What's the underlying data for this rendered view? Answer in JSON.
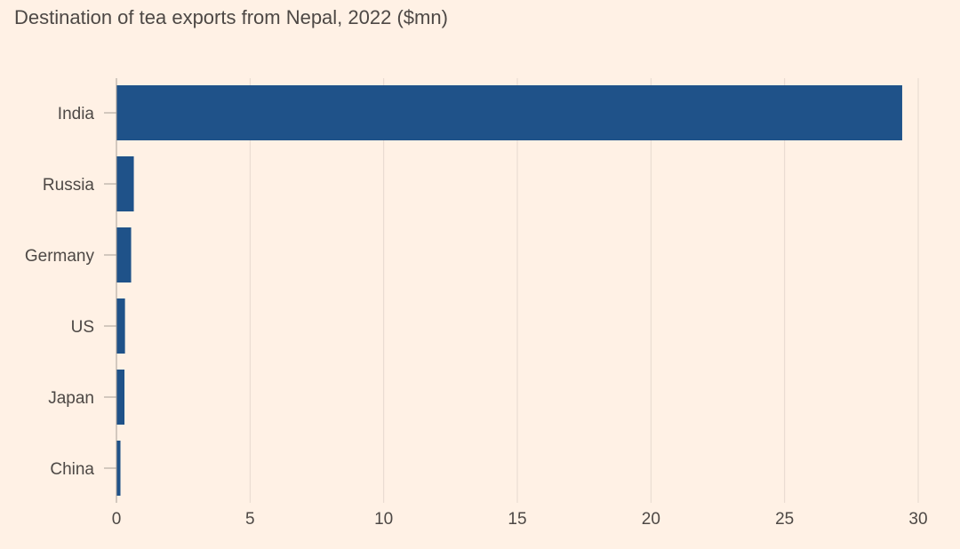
{
  "title": "Destination of tea exports from Nepal, 2022 ($mn)",
  "colors": {
    "background": "#fff1e5",
    "bar": "#1f5289",
    "grid": "#e6d9ce",
    "axis": "#a79f97",
    "text": "#4d4845"
  },
  "chart_data": {
    "type": "bar",
    "orientation": "horizontal",
    "title": "Destination of tea exports from Nepal, 2022 ($mn)",
    "categories": [
      "India",
      "Russia",
      "Germany",
      "US",
      "Japan",
      "China"
    ],
    "values": [
      29.4,
      0.65,
      0.55,
      0.32,
      0.3,
      0.15
    ],
    "xlim": [
      0,
      30
    ],
    "xticks": [
      "0",
      "5",
      "10",
      "15",
      "20",
      "25",
      "30"
    ],
    "grid": "vertical",
    "legend": "none"
  }
}
